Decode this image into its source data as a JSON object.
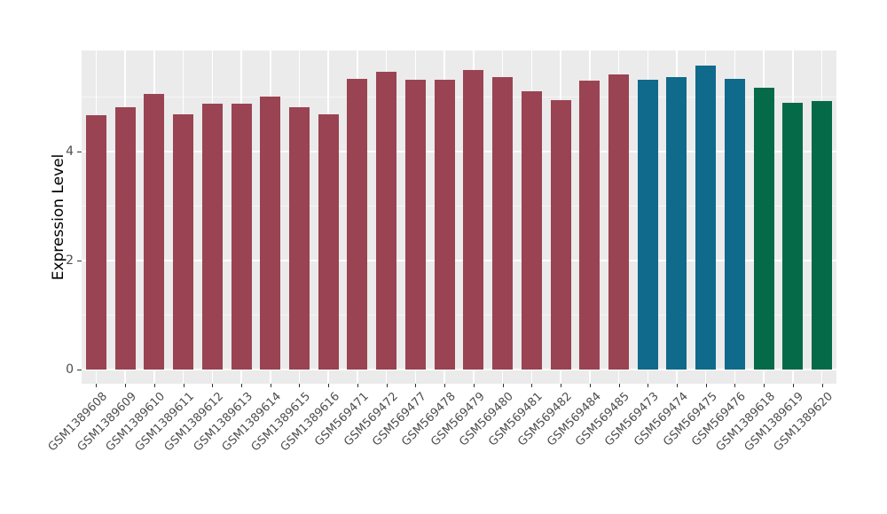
{
  "chart_data": {
    "type": "bar",
    "title": "",
    "xlabel": "",
    "ylabel": "Expression Level",
    "ylim": [
      0,
      5.85
    ],
    "yticks": [
      0,
      2,
      4
    ],
    "yticks_minor": [
      1,
      3,
      5
    ],
    "grid": "on",
    "legend": "none",
    "panel_background": "#EBEBEB",
    "grid_major_color": "#FFFFFF",
    "categories": [
      "GSM1389608",
      "GSM1389609",
      "GSM1389610",
      "GSM1389611",
      "GSM1389612",
      "GSM1389613",
      "GSM1389614",
      "GSM1389615",
      "GSM1389616",
      "GSM569471",
      "GSM569472",
      "GSM569477",
      "GSM569478",
      "GSM569479",
      "GSM569480",
      "GSM569481",
      "GSM569482",
      "GSM569484",
      "GSM569485",
      "GSM569473",
      "GSM569474",
      "GSM569475",
      "GSM569476",
      "GSM1389618",
      "GSM1389619",
      "GSM1389620"
    ],
    "values": [
      4.66,
      4.81,
      5.05,
      4.68,
      4.88,
      4.88,
      5.01,
      4.81,
      4.68,
      5.33,
      5.46,
      5.32,
      5.31,
      5.5,
      5.37,
      5.11,
      4.95,
      5.3,
      5.41,
      5.31,
      5.37,
      5.58,
      5.33,
      5.17,
      4.9,
      4.93
    ],
    "bar_colors": [
      "#9A4352",
      "#9A4352",
      "#9A4352",
      "#9A4352",
      "#9A4352",
      "#9A4352",
      "#9A4352",
      "#9A4352",
      "#9A4352",
      "#9A4352",
      "#9A4352",
      "#9A4352",
      "#9A4352",
      "#9A4352",
      "#9A4352",
      "#9A4352",
      "#9A4352",
      "#9A4352",
      "#9A4352",
      "#0F6A8B",
      "#0F6A8B",
      "#0F6A8B",
      "#0F6A8B",
      "#056A47",
      "#056A47",
      "#056A47"
    ],
    "group_colors": {
      "group1_red": "#9A4352",
      "group2_blue": "#0F6A8B",
      "group3_green": "#056A47"
    }
  }
}
